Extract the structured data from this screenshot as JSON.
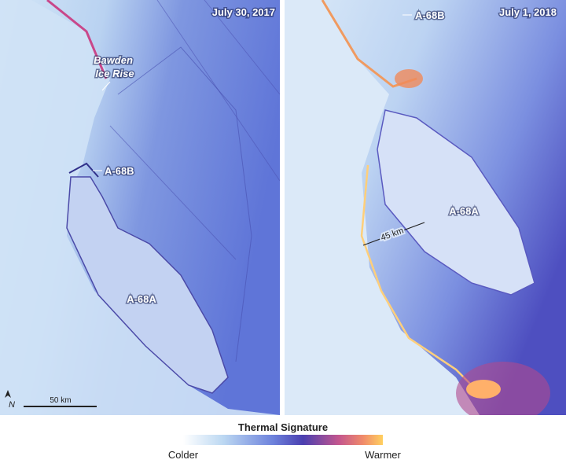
{
  "panels": [
    {
      "date": "July 30, 2017",
      "rise_label": [
        "Bawden",
        "Ice Rise"
      ],
      "small_berg": "A-68B",
      "large_berg": "A-68A",
      "scale_bar": "50 km",
      "north": "N"
    },
    {
      "date": "July 1, 2018",
      "small_berg": "A-68B",
      "large_berg": "A-68A",
      "width_label": "45 km"
    }
  ],
  "legend": {
    "title": "Thermal Signature",
    "low": "Colder",
    "high": "Warmer"
  }
}
